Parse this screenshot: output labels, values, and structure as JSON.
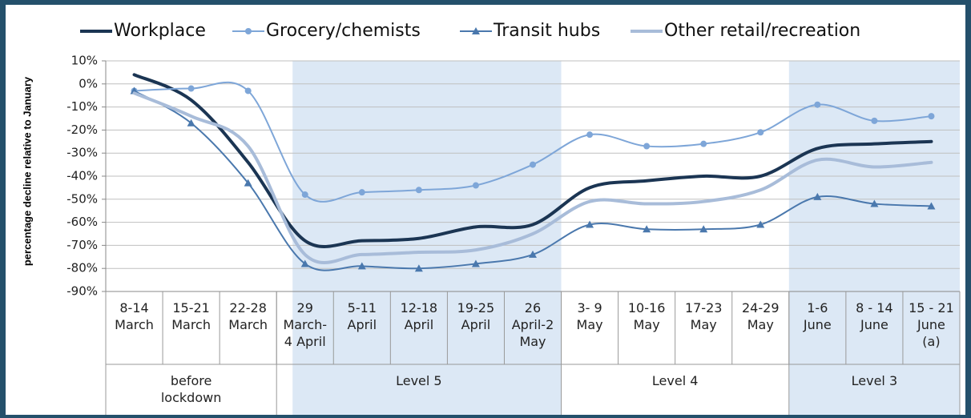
{
  "chart_data": {
    "type": "line",
    "y_label": "percentage decline relative to January",
    "categories": [
      "8-14\nMarch",
      "15-21\nMarch",
      "22-28\nMarch",
      "29\nMarch-\n4 April",
      "5-11\nApril",
      "12-18\nApril",
      "19-25\nApril",
      "26\nApril-2\nMay",
      "3- 9\nMay",
      "10-16\nMay",
      "17-23\nMay",
      "24-29\nMay",
      "1-6\nJune",
      "8 - 14\nJune",
      "15 - 21\nJune\n(a)"
    ],
    "groups": [
      {
        "label": "before\nlockdown",
        "span": 3,
        "shaded": false
      },
      {
        "label": "Level 5",
        "span": 5,
        "shaded": true
      },
      {
        "label": "Level 4",
        "span": 4,
        "shaded": false
      },
      {
        "label": "Level 3",
        "span": 3,
        "shaded": true
      }
    ],
    "series": [
      {
        "name": "Workplace",
        "color": "#1b3553",
        "width": 4,
        "marker": "none",
        "values": [
          4,
          -7,
          -34,
          -68,
          -68,
          -67,
          -62,
          -61,
          -45,
          -42,
          -40,
          -40,
          -28,
          -26,
          -25
        ]
      },
      {
        "name": "Grocery/chemists",
        "color": "#7ea6d8",
        "width": 2,
        "marker": "circle",
        "values": [
          -3,
          -2,
          -3,
          -48,
          -47,
          -46,
          -44,
          -35,
          -22,
          -27,
          -26,
          -21,
          -9,
          -16,
          -14
        ]
      },
      {
        "name": "Transit hubs",
        "color": "#4a78ad",
        "width": 2,
        "marker": "triangle",
        "values": [
          -3,
          -17,
          -43,
          -78,
          -79,
          -80,
          -78,
          -74,
          -61,
          -63,
          -63,
          -61,
          -49,
          -52,
          -53
        ]
      },
      {
        "name": "Other retail/recreation",
        "color": "#a8bcd9",
        "width": 4,
        "marker": "none",
        "values": [
          -4,
          -14,
          -27,
          -74,
          -74,
          -73,
          -72,
          -65,
          -51,
          -52,
          -51,
          -46,
          -33,
          -36,
          -34
        ]
      }
    ],
    "ylim": [
      -90,
      10
    ],
    "yticks": [
      {
        "value": 10,
        "label": "10%"
      },
      {
        "value": 0,
        "label": "0%"
      },
      {
        "value": -10,
        "label": "-10%"
      },
      {
        "value": -20,
        "label": "-20%"
      },
      {
        "value": -30,
        "label": "-30%"
      },
      {
        "value": -40,
        "label": "-40%"
      },
      {
        "value": -50,
        "label": "-50%"
      },
      {
        "value": -60,
        "label": "-60%"
      },
      {
        "value": -70,
        "label": "-70%"
      },
      {
        "value": -80,
        "label": "-80%"
      },
      {
        "value": -90,
        "label": "-90%"
      }
    ],
    "grid": true,
    "legend": "top",
    "shade_color": "#dce8f5"
  }
}
